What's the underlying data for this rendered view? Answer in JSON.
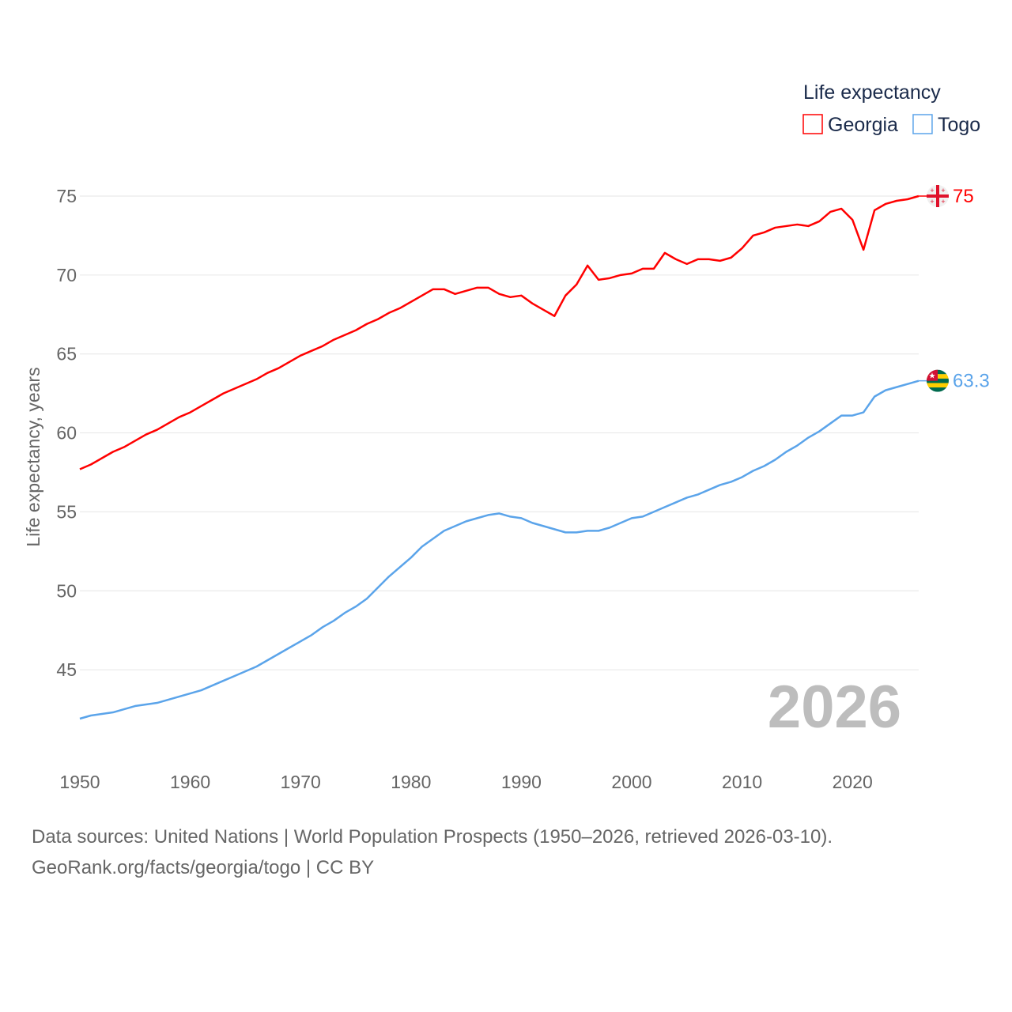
{
  "chart_data": {
    "type": "line",
    "title": "",
    "legend_title": "Life expectancy",
    "legend_placement": "top-right",
    "xlabel": "",
    "ylabel": "Life expectancy, years",
    "xlim": [
      1950,
      2026
    ],
    "ylim": [
      40,
      76
    ],
    "yticks": [
      45,
      50,
      55,
      60,
      65,
      70,
      75
    ],
    "xticks": [
      1950,
      1960,
      1970,
      1980,
      1990,
      2000,
      2010,
      2020
    ],
    "grid": true,
    "year_watermark": "2026",
    "x": [
      1950,
      1951,
      1952,
      1953,
      1954,
      1955,
      1956,
      1957,
      1958,
      1959,
      1960,
      1961,
      1962,
      1963,
      1964,
      1965,
      1966,
      1967,
      1968,
      1969,
      1970,
      1971,
      1972,
      1973,
      1974,
      1975,
      1976,
      1977,
      1978,
      1979,
      1980,
      1981,
      1982,
      1983,
      1984,
      1985,
      1986,
      1987,
      1988,
      1989,
      1990,
      1991,
      1992,
      1993,
      1994,
      1995,
      1996,
      1997,
      1998,
      1999,
      2000,
      2001,
      2002,
      2003,
      2004,
      2005,
      2006,
      2007,
      2008,
      2009,
      2010,
      2011,
      2012,
      2013,
      2014,
      2015,
      2016,
      2017,
      2018,
      2019,
      2020,
      2021,
      2022,
      2023,
      2024,
      2025,
      2026
    ],
    "series": [
      {
        "name": "Georgia",
        "color": "#ff0000",
        "end_label": "75",
        "values": [
          57.7,
          58.0,
          58.4,
          58.8,
          59.1,
          59.5,
          59.9,
          60.2,
          60.6,
          61.0,
          61.3,
          61.7,
          62.1,
          62.5,
          62.8,
          63.1,
          63.4,
          63.8,
          64.1,
          64.5,
          64.9,
          65.2,
          65.5,
          65.9,
          66.2,
          66.5,
          66.9,
          67.2,
          67.6,
          67.9,
          68.3,
          68.7,
          69.1,
          69.1,
          68.8,
          69.0,
          69.2,
          69.2,
          68.8,
          68.6,
          68.7,
          68.2,
          67.8,
          67.4,
          68.7,
          69.4,
          70.6,
          69.7,
          69.8,
          70.0,
          70.1,
          70.4,
          70.4,
          71.4,
          71.0,
          70.7,
          71.0,
          71.0,
          70.9,
          71.1,
          71.7,
          72.5,
          72.7,
          73.0,
          73.1,
          73.2,
          73.1,
          73.4,
          74.0,
          74.2,
          73.5,
          71.6,
          74.1,
          74.5,
          74.7,
          74.8,
          75.0
        ]
      },
      {
        "name": "Togo",
        "color": "#5ba4ea",
        "end_label": "63.3",
        "values": [
          41.9,
          42.1,
          42.2,
          42.3,
          42.5,
          42.7,
          42.8,
          42.9,
          43.1,
          43.3,
          43.5,
          43.7,
          44.0,
          44.3,
          44.6,
          44.9,
          45.2,
          45.6,
          46.0,
          46.4,
          46.8,
          47.2,
          47.7,
          48.1,
          48.6,
          49.0,
          49.5,
          50.2,
          50.9,
          51.5,
          52.1,
          52.8,
          53.3,
          53.8,
          54.1,
          54.4,
          54.6,
          54.8,
          54.9,
          54.7,
          54.6,
          54.3,
          54.1,
          53.9,
          53.7,
          53.7,
          53.8,
          53.8,
          54.0,
          54.3,
          54.6,
          54.7,
          55.0,
          55.3,
          55.6,
          55.9,
          56.1,
          56.4,
          56.7,
          56.9,
          57.2,
          57.6,
          57.9,
          58.3,
          58.8,
          59.2,
          59.7,
          60.1,
          60.6,
          61.1,
          61.1,
          61.3,
          62.3,
          62.7,
          62.9,
          63.1,
          63.3
        ]
      }
    ]
  },
  "footer": {
    "line1": "Data sources: United Nations | World Population Prospects (1950–2026, retrieved 2026-03-10).",
    "line2": "GeoRank.org/facts/georgia/togo | CC BY"
  }
}
